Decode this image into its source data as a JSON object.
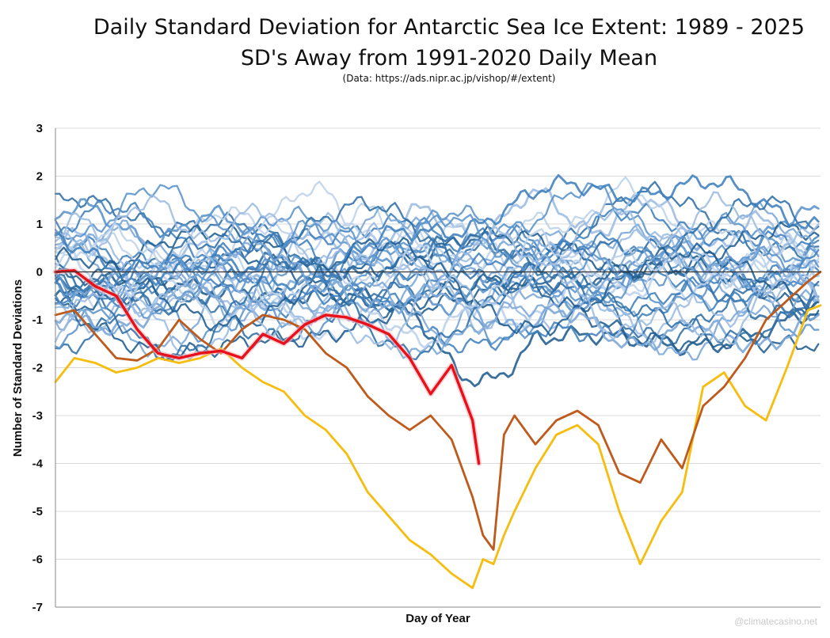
{
  "chart_data": {
    "type": "line",
    "title": "Daily Standard Deviation for Antarctic Sea Ice Extent: 1989 - 2025",
    "subtitle": "SD's Away from 1991-2020 Daily Mean",
    "source": "(Data: https://ads.nipr.ac.jp/vishop/#/extent)",
    "xlabel": "Day of Year",
    "ylabel": "Number of Standard Deviations",
    "xlim": [
      1,
      366
    ],
    "ylim": [
      -7,
      3
    ],
    "yticks": [
      3,
      2,
      1,
      0,
      -1,
      -2,
      -3,
      -4,
      -5,
      -6,
      -7
    ],
    "grid": true,
    "legend": "none",
    "watermark": "@climatecasino.net",
    "colors": {
      "highlight_2025": "#e8101a",
      "highlight_2024": "#bf5a1d",
      "highlight_2023": "#f6bd0e",
      "background_series": [
        "#1f5c8f",
        "#2f6ea6",
        "#3f7fbd",
        "#5b93cc",
        "#7aa6d6",
        "#9bbbe1",
        "#bcd1ea"
      ]
    },
    "series": [
      {
        "x": [
          1,
          10,
          20,
          30,
          40,
          50,
          60,
          70,
          80,
          90,
          100,
          110,
          120,
          130,
          140,
          150,
          160,
          170,
          180,
          190,
          200,
          203
        ],
        "values": [
          0,
          0.03,
          -0.3,
          -0.5,
          -1.2,
          -1.7,
          -1.8,
          -1.7,
          -1.65,
          -1.8,
          -1.3,
          -1.5,
          -1.1,
          -0.9,
          -0.95,
          -1.1,
          -1.3,
          -1.8,
          -2.55,
          -1.95,
          -3.1,
          -4.0
        ],
        "color": "#e8101a"
      },
      {
        "x": [
          1,
          10,
          20,
          30,
          40,
          50,
          60,
          70,
          80,
          90,
          100,
          110,
          120,
          130,
          140,
          150,
          160,
          170,
          180,
          190,
          200,
          205,
          210,
          215,
          220,
          230,
          240,
          250,
          260,
          270,
          280,
          290,
          300,
          310,
          320,
          330,
          340,
          350,
          360,
          366
        ],
        "values": [
          -0.9,
          -0.8,
          -1.3,
          -1.8,
          -1.85,
          -1.6,
          -1.0,
          -1.4,
          -1.7,
          -1.2,
          -0.9,
          -1.0,
          -1.2,
          -1.7,
          -2.0,
          -2.6,
          -3.0,
          -3.3,
          -3.0,
          -3.5,
          -4.7,
          -5.5,
          -5.8,
          -3.4,
          -3.0,
          -3.6,
          -3.1,
          -2.9,
          -3.2,
          -4.2,
          -4.4,
          -3.5,
          -4.1,
          -2.8,
          -2.4,
          -1.8,
          -1.0,
          -0.6,
          -0.2,
          0
        ]
      },
      {
        "x": [
          1,
          10,
          20,
          30,
          40,
          50,
          60,
          70,
          80,
          90,
          100,
          110,
          120,
          130,
          140,
          150,
          160,
          170,
          180,
          190,
          200,
          205,
          210,
          215,
          220,
          230,
          240,
          250,
          260,
          270,
          280,
          290,
          300,
          310,
          320,
          330,
          340,
          350,
          360,
          366
        ],
        "values": [
          -2.3,
          -1.8,
          -1.9,
          -2.1,
          -2.0,
          -1.8,
          -1.9,
          -1.8,
          -1.6,
          -2.0,
          -2.3,
          -2.5,
          -3.0,
          -3.3,
          -3.8,
          -4.6,
          -5.1,
          -5.6,
          -5.9,
          -6.3,
          -6.6,
          -6.0,
          -6.1,
          -5.5,
          -5.0,
          -4.1,
          -3.4,
          -3.2,
          -3.6,
          -5.0,
          -6.1,
          -5.2,
          -4.6,
          -2.4,
          -2.1,
          -2.8,
          -3.1,
          -2.0,
          -0.8,
          -0.7
        ],
        "color": "#f6bd0e"
      }
    ]
  }
}
